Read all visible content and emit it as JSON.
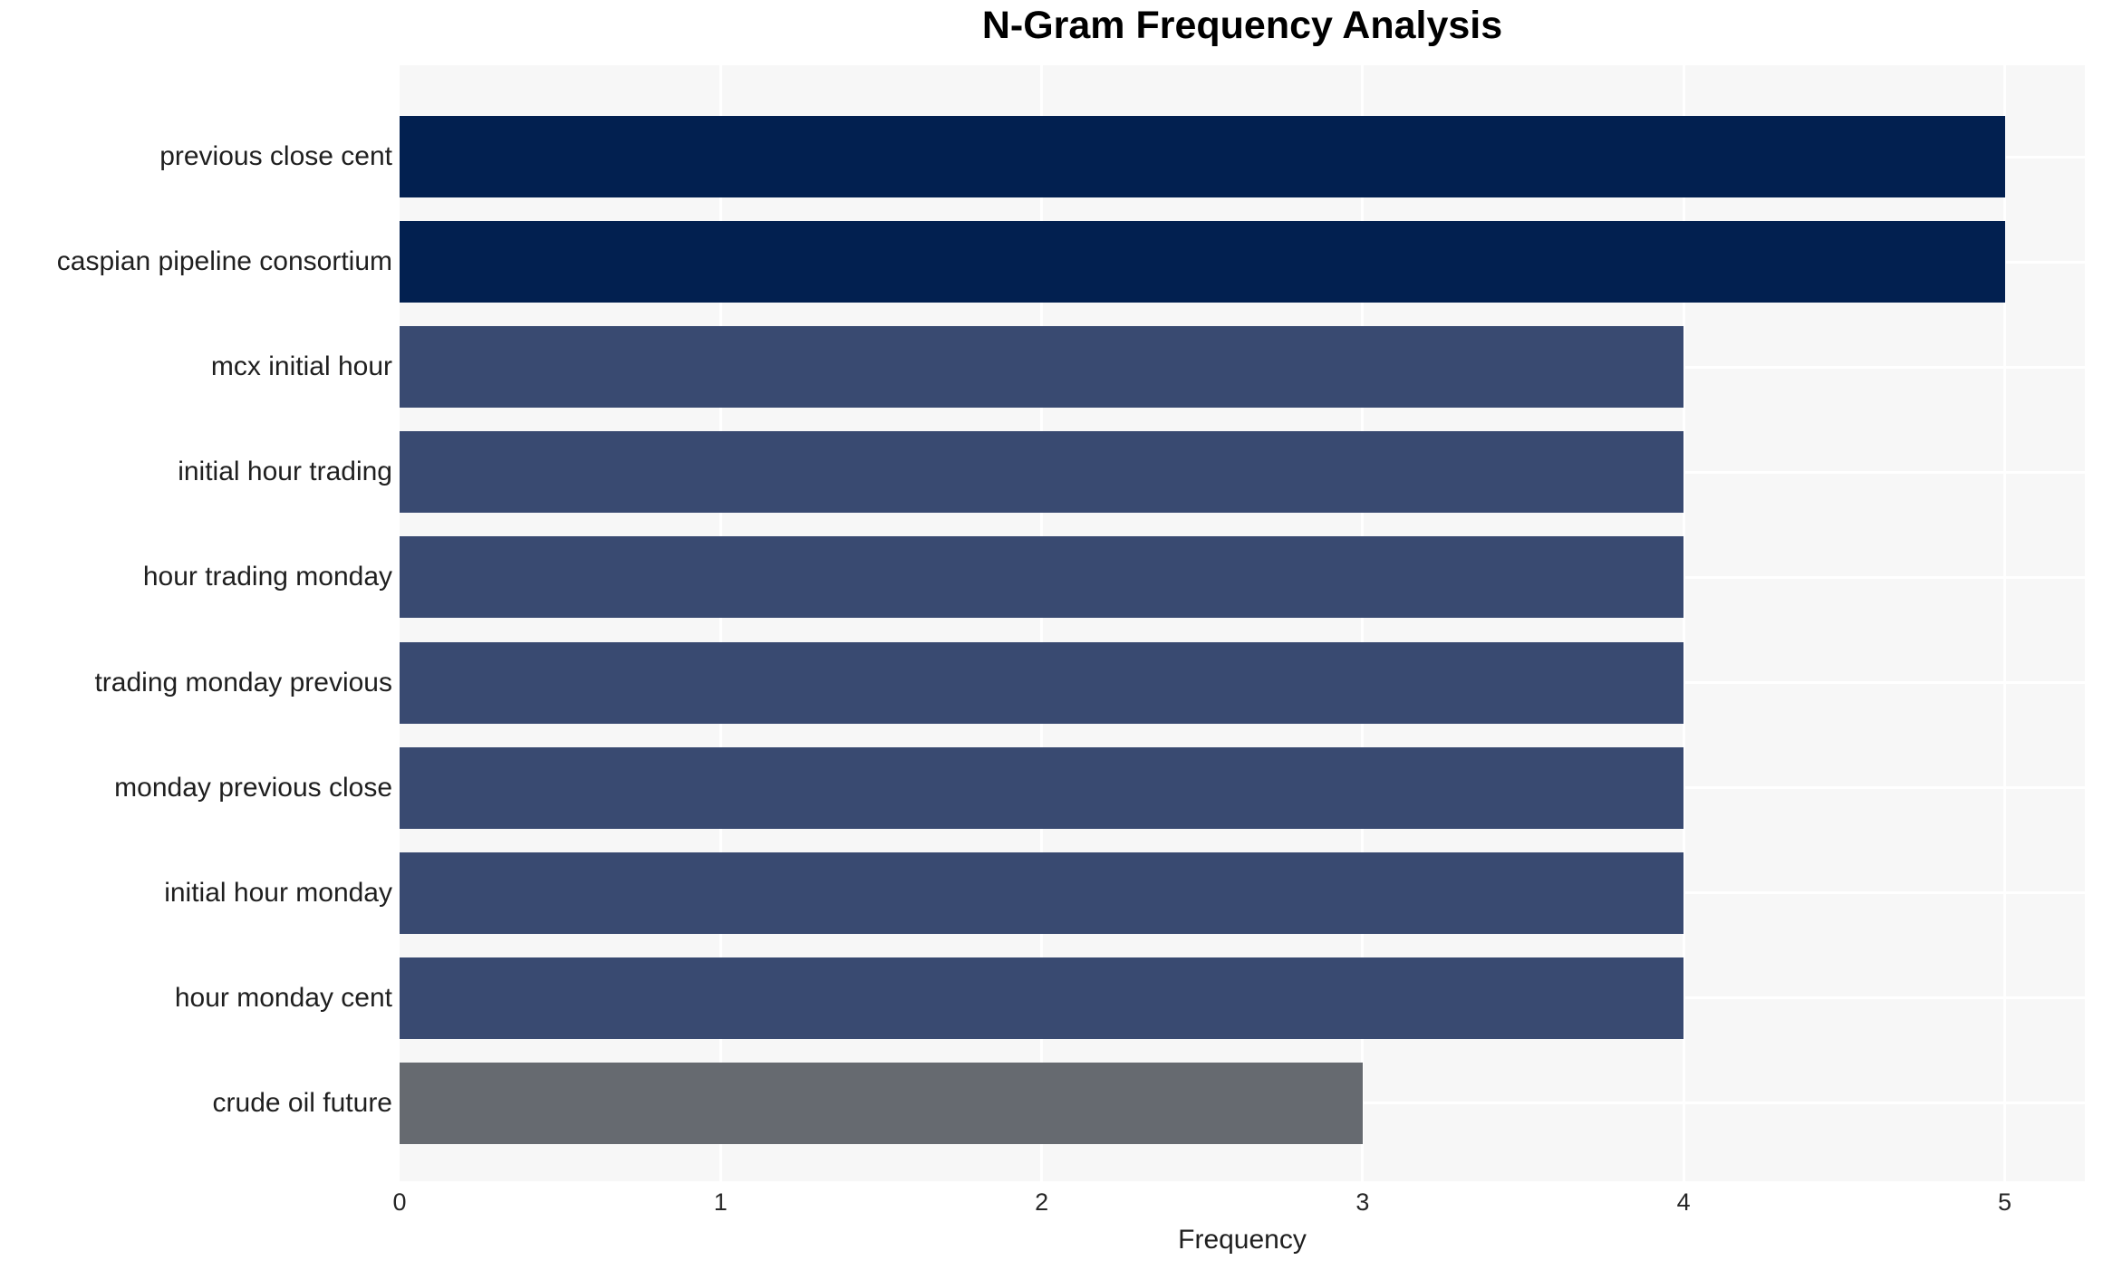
{
  "chart_data": {
    "type": "bar",
    "orientation": "horizontal",
    "title": "N-Gram Frequency Analysis",
    "xlabel": "Frequency",
    "ylabel": "",
    "categories": [
      "previous close cent",
      "caspian pipeline consortium",
      "mcx initial hour",
      "initial hour trading",
      "hour trading monday",
      "trading monday previous",
      "monday previous close",
      "initial hour monday",
      "hour monday cent",
      "crude oil future"
    ],
    "values": [
      5,
      5,
      4,
      4,
      4,
      4,
      4,
      4,
      4,
      3
    ],
    "x_ticks": [
      "0",
      "1",
      "2",
      "3",
      "4",
      "5"
    ],
    "xlim": [
      0,
      5.25
    ],
    "grid": true,
    "legend": false,
    "colors": {
      "bars": [
        "#022050",
        "#022050",
        "#394a71",
        "#394a71",
        "#394a71",
        "#394a71",
        "#394a71",
        "#394a71",
        "#394a71",
        "#666a70"
      ],
      "bar_value_5": "#022050",
      "bar_value_4": "#394a71",
      "bar_value_3": "#666a70",
      "plot_background": "#f7f7f7",
      "gridline": "#ffffff",
      "tick_text": "#262626",
      "label_text": "#1f1f1f",
      "title_text": "#000000"
    }
  }
}
